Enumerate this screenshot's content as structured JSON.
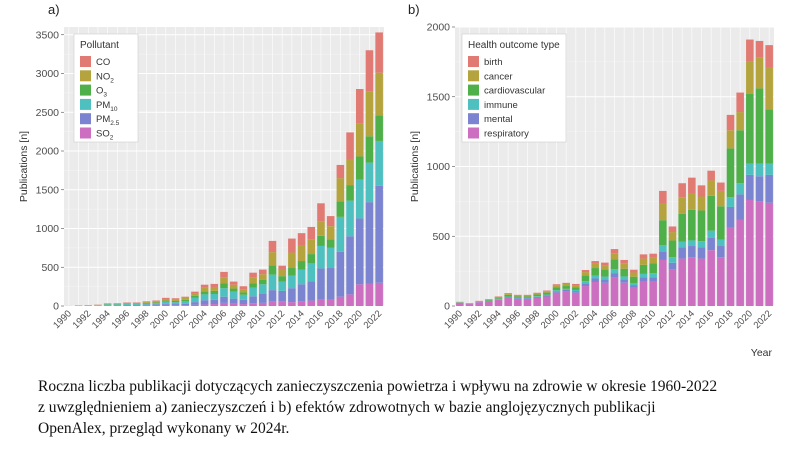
{
  "colors": {
    "CO": "#e07a72",
    "NO2": "#b5a33d",
    "O3": "#4faf48",
    "PM10": "#4fc0c0",
    "PM2.5": "#7b84d1",
    "SO2": "#cc6fc1",
    "birth": "#e07a72",
    "cancer": "#b5a33d",
    "cardiovascular": "#4faf48",
    "immune": "#4fc0c0",
    "mental": "#7b84d1",
    "respiratory": "#cc6fc1"
  },
  "chart_data": [
    {
      "type": "bar",
      "stacked": true,
      "panel_label": "a)",
      "ylabel": "Publications [n]",
      "xlabel": "",
      "ylim": [
        0,
        3600
      ],
      "yticks": [
        0,
        500,
        1000,
        1500,
        2000,
        2500,
        3000,
        3500
      ],
      "grid": true,
      "legend": {
        "title": "Pollutant",
        "position": "top-left",
        "items": [
          {
            "key": "CO",
            "base": "CO",
            "sub": ""
          },
          {
            "key": "NO2",
            "base": "NO",
            "sub": "2"
          },
          {
            "key": "O3",
            "base": "O",
            "sub": "3"
          },
          {
            "key": "PM10",
            "base": "PM",
            "sub": "10"
          },
          {
            "key": "PM2.5",
            "base": "PM",
            "sub": "2.5"
          },
          {
            "key": "SO2",
            "base": "SO",
            "sub": "2"
          }
        ]
      },
      "xtick_labels": [
        "1990",
        "1992",
        "1994",
        "1996",
        "1998",
        "2000",
        "2002",
        "2004",
        "2006",
        "2008",
        "2010",
        "2012",
        "2014",
        "2016",
        "2018",
        "2020",
        "2022"
      ],
      "categories": [
        1990,
        1991,
        1992,
        1993,
        1994,
        1995,
        1996,
        1997,
        1998,
        1999,
        2000,
        2001,
        2002,
        2003,
        2004,
        2005,
        2006,
        2007,
        2008,
        2009,
        2010,
        2011,
        2012,
        2013,
        2014,
        2015,
        2016,
        2017,
        2018,
        2019,
        2020,
        2021,
        2022
      ],
      "series": [
        {
          "key": "SO2",
          "values": [
            0,
            2,
            3,
            4,
            8,
            8,
            8,
            8,
            10,
            12,
            15,
            10,
            10,
            15,
            20,
            25,
            40,
            30,
            25,
            35,
            40,
            55,
            55,
            50,
            60,
            70,
            85,
            90,
            120,
            150,
            280,
            290,
            300
          ]
        },
        {
          "key": "PM2.5",
          "values": [
            0,
            1,
            1,
            1,
            2,
            3,
            5,
            5,
            8,
            10,
            15,
            15,
            20,
            35,
            55,
            55,
            80,
            65,
            55,
            90,
            120,
            150,
            140,
            180,
            220,
            250,
            400,
            400,
            580,
            750,
            850,
            1050,
            1250
          ]
        },
        {
          "key": "PM10",
          "values": [
            1,
            2,
            3,
            5,
            10,
            10,
            12,
            12,
            15,
            15,
            25,
            25,
            30,
            55,
            75,
            75,
            110,
            90,
            65,
            110,
            120,
            200,
            120,
            160,
            190,
            230,
            290,
            260,
            450,
            460,
            500,
            510,
            580
          ]
        },
        {
          "key": "O3",
          "values": [
            0,
            1,
            1,
            1,
            4,
            4,
            5,
            5,
            8,
            10,
            15,
            15,
            20,
            25,
            40,
            40,
            60,
            40,
            30,
            55,
            60,
            120,
            70,
            100,
            110,
            120,
            130,
            110,
            200,
            200,
            300,
            340,
            330
          ]
        },
        {
          "key": "NO2",
          "values": [
            1,
            2,
            3,
            4,
            6,
            6,
            10,
            10,
            12,
            14,
            20,
            20,
            25,
            30,
            50,
            50,
            80,
            50,
            40,
            80,
            70,
            170,
            80,
            200,
            200,
            190,
            190,
            170,
            300,
            330,
            430,
            580,
            550
          ]
        },
        {
          "key": "CO",
          "values": [
            0,
            1,
            2,
            3,
            5,
            5,
            6,
            6,
            8,
            10,
            15,
            15,
            15,
            25,
            35,
            40,
            70,
            40,
            40,
            60,
            60,
            145,
            55,
            180,
            160,
            160,
            230,
            130,
            170,
            350,
            440,
            530,
            520
          ]
        }
      ]
    },
    {
      "type": "bar",
      "stacked": true,
      "panel_label": "b)",
      "ylabel": "Publications [n]",
      "xlabel": "Year",
      "ylim": [
        0,
        2000
      ],
      "yticks": [
        0,
        500,
        1000,
        1500,
        2000
      ],
      "grid": true,
      "legend": {
        "title": "Health outcome type",
        "position": "top-left",
        "items": [
          {
            "key": "birth",
            "base": "birth",
            "sub": ""
          },
          {
            "key": "cancer",
            "base": "cancer",
            "sub": ""
          },
          {
            "key": "cardiovascular",
            "base": "cardiovascular",
            "sub": ""
          },
          {
            "key": "immune",
            "base": "immune",
            "sub": ""
          },
          {
            "key": "mental",
            "base": "mental",
            "sub": ""
          },
          {
            "key": "respiratory",
            "base": "respiratory",
            "sub": ""
          }
        ]
      },
      "xtick_labels": [
        "1990",
        "1992",
        "1994",
        "1996",
        "1998",
        "2000",
        "2002",
        "2004",
        "2006",
        "2008",
        "2010",
        "2012",
        "2014",
        "2016",
        "2018",
        "2020",
        "2022"
      ],
      "categories": [
        1990,
        1991,
        1992,
        1993,
        1994,
        1995,
        1996,
        1997,
        1998,
        1999,
        2000,
        2001,
        2002,
        2003,
        2004,
        2005,
        2006,
        2007,
        2008,
        2009,
        2010,
        2011,
        2012,
        2013,
        2014,
        2015,
        2016,
        2017,
        2018,
        2019,
        2020,
        2021,
        2022
      ],
      "series": [
        {
          "key": "respiratory",
          "values": [
            22,
            14,
            27,
            33,
            45,
            58,
            50,
            50,
            58,
            68,
            95,
            103,
            95,
            143,
            172,
            166,
            203,
            167,
            130,
            175,
            175,
            330,
            260,
            340,
            350,
            340,
            400,
            350,
            560,
            620,
            760,
            750,
            740
          ]
        },
        {
          "key": "mental",
          "values": [
            2,
            1,
            2,
            3,
            4,
            6,
            5,
            5,
            7,
            8,
            10,
            12,
            12,
            20,
            25,
            25,
            30,
            25,
            20,
            30,
            30,
            60,
            50,
            80,
            80,
            80,
            90,
            80,
            150,
            180,
            180,
            180,
            200
          ]
        },
        {
          "key": "immune",
          "values": [
            1,
            1,
            1,
            2,
            3,
            4,
            4,
            4,
            5,
            6,
            8,
            8,
            8,
            15,
            20,
            20,
            30,
            20,
            15,
            25,
            30,
            45,
            40,
            40,
            40,
            45,
            50,
            45,
            70,
            80,
            80,
            90,
            80
          ]
        },
        {
          "key": "cardiovascular",
          "values": [
            2,
            2,
            3,
            5,
            8,
            12,
            10,
            10,
            12,
            14,
            20,
            20,
            20,
            40,
            55,
            50,
            70,
            55,
            45,
            65,
            70,
            180,
            120,
            200,
            220,
            220,
            250,
            240,
            350,
            380,
            500,
            540,
            390
          ]
        },
        {
          "key": "cancer",
          "values": [
            2,
            2,
            3,
            4,
            6,
            8,
            7,
            7,
            8,
            10,
            15,
            15,
            15,
            25,
            30,
            30,
            45,
            40,
            30,
            45,
            40,
            120,
            60,
            120,
            120,
            100,
            110,
            110,
            130,
            130,
            230,
            220,
            300
          ]
        },
        {
          "key": "birth",
          "values": [
            1,
            1,
            1,
            2,
            3,
            5,
            4,
            4,
            5,
            5,
            8,
            8,
            8,
            15,
            20,
            20,
            30,
            23,
            20,
            30,
            30,
            90,
            40,
            100,
            110,
            80,
            70,
            60,
            110,
            140,
            160,
            120,
            160
          ]
        }
      ]
    }
  ],
  "caption": {
    "line1": "Roczna liczba publikacji dotyczących zanieczyszczenia powietrza i wpływu na zdrowie w okresie 1960-2022",
    "line2": "z uwzględnieniem a) zanieczyszczeń i b) efektów zdrowotnych w bazie anglojęzycznych publikacji",
    "line3": "OpenAlex, przegląd wykonany w 2024r."
  }
}
